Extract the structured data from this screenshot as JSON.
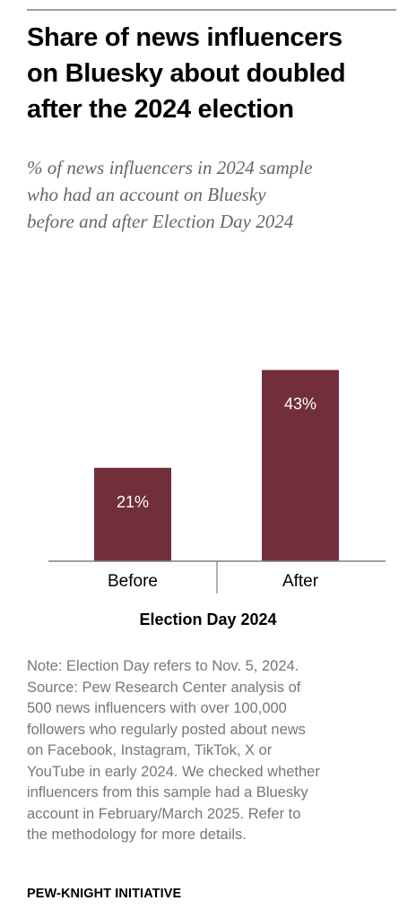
{
  "title_lines": [
    "Share of news influencers",
    "on Bluesky about doubled",
    "after the 2024 election"
  ],
  "subtitle_lines": [
    "% of news influencers in 2024 sample",
    "who had an account on Bluesky",
    "before and after Election Day 2024"
  ],
  "chart_data": {
    "type": "bar",
    "title": "Share of news influencers on Bluesky about doubled after the 2024 election",
    "xlabel": "Election Day 2024",
    "ylabel": "",
    "categories": [
      "Before",
      "After"
    ],
    "values": [
      21,
      43
    ],
    "value_labels": [
      "21%",
      "43%"
    ],
    "ylim": [
      0,
      50
    ],
    "grid": false,
    "bar_color": "#722f3b"
  },
  "note_lines": [
    "Note: Election Day refers to Nov. 5, 2024.",
    "Source: Pew Research Center analysis of",
    "500 news influencers with over 100,000",
    "followers who regularly posted about news",
    "on Facebook, Instagram, TikTok, X or",
    "YouTube in early 2024. We checked whether",
    "influencers from this sample had a Bluesky",
    "account in February/March 2025. Refer to",
    "the methodology for more details."
  ],
  "footer": "PEW-KNIGHT INITIATIVE"
}
